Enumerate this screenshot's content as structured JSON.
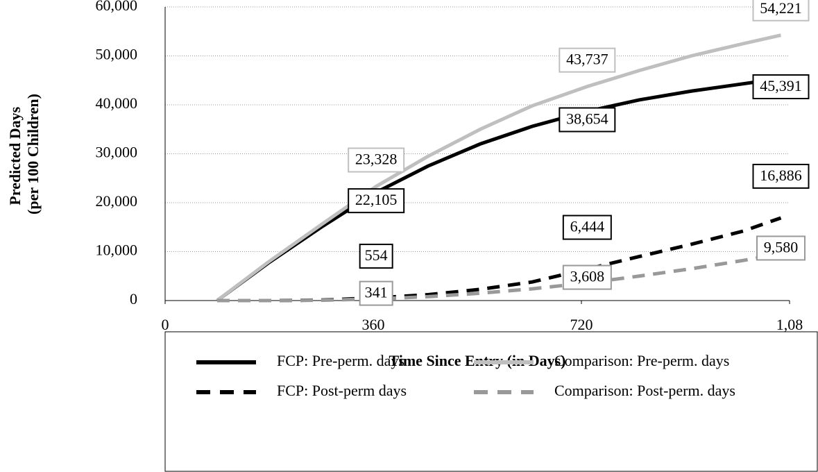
{
  "chart_data": {
    "type": "line",
    "x_label": "Time Since Entry (in Days)",
    "y_label": [
      "Predicted Days",
      "(per 100 Children)"
    ],
    "x": [
      90,
      180,
      270,
      365,
      455,
      545,
      635,
      730,
      820,
      910,
      1000,
      1065
    ],
    "series": [
      {
        "name": "FCP: Pre-perm. days",
        "color": "#000000",
        "dashed": false,
        "values": [
          0,
          7800,
          15000,
          22105,
          27500,
          32000,
          35600,
          38654,
          41000,
          42800,
          44300,
          45391
        ],
        "value_labels": [
          null,
          null,
          null,
          "22,105",
          null,
          null,
          null,
          "38,654",
          null,
          null,
          null,
          "45,391"
        ]
      },
      {
        "name": "Comparison: Pre-perm. days",
        "color": "#bfbfbf",
        "dashed": false,
        "values": [
          0,
          8000,
          15500,
          23328,
          29500,
          35000,
          39800,
          43737,
          47000,
          50000,
          52500,
          54221
        ],
        "value_labels": [
          null,
          null,
          null,
          "23,328",
          null,
          null,
          null,
          "43,737",
          null,
          null,
          null,
          "54,221"
        ]
      },
      {
        "name": "FCP: Post-perm days",
        "color": "#000000",
        "dashed": true,
        "values": [
          0,
          0,
          100,
          554,
          1200,
          2300,
          3800,
          6444,
          9000,
          11500,
          14200,
          16886
        ],
        "value_labels": [
          null,
          null,
          null,
          "554",
          null,
          null,
          null,
          "6,444",
          null,
          null,
          null,
          "16,886"
        ]
      },
      {
        "name": "Comparison: Post-perm. days",
        "color": "#999999",
        "dashed": true,
        "values": [
          0,
          0,
          60,
          341,
          800,
          1500,
          2400,
          3608,
          5000,
          6500,
          8200,
          9580
        ],
        "value_labels": [
          null,
          null,
          null,
          "341",
          null,
          null,
          null,
          "3,608",
          null,
          null,
          null,
          "9,580"
        ]
      }
    ],
    "xlim": [
      0,
      1080
    ],
    "xticks": [
      0,
      360,
      720,
      {
        "value": 1080,
        "label": "1,08"
      }
    ],
    "ylim": [
      0,
      60000
    ],
    "yticks": [
      0,
      {
        "value": 10000,
        "label": "10,000"
      },
      {
        "value": 20000,
        "label": "20,000"
      },
      {
        "value": 30000,
        "label": "30,000"
      },
      {
        "value": 40000,
        "label": "40,000"
      },
      {
        "value": 50000,
        "label": "50,000"
      },
      {
        "value": 60000,
        "label": "60,000"
      }
    ],
    "grid": true
  }
}
